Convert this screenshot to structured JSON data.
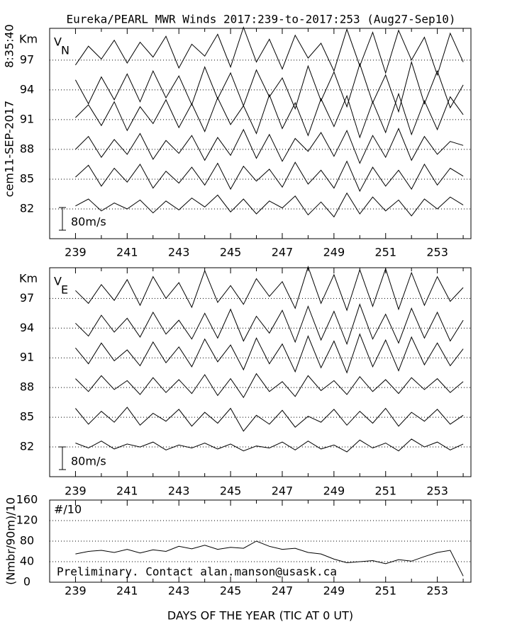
{
  "header": {
    "title": "Eureka/PEARL MWR Winds 2017:239-to-2017:253 (Aug27-Sep10)",
    "side_time": "8:35:40",
    "side_date": "cem11-SEP-2017",
    "x_label": "DAYS OF THE YEAR (TIC AT 0 UT)"
  },
  "chart_data": [
    {
      "type": "line",
      "panel_label": "V",
      "panel_subscript": "N",
      "unit_label": "Km",
      "scale_label": "80m/s",
      "grid": true,
      "xlim": [
        238,
        254.3
      ],
      "ylim": [
        79,
        100.2
      ],
      "xticks": [
        239,
        241,
        243,
        245,
        247,
        249,
        251,
        253
      ],
      "xminorticks": [
        240,
        242,
        244,
        246,
        248,
        250,
        252,
        254
      ],
      "yticks": [
        82,
        85,
        88,
        91,
        94,
        97
      ],
      "x": [
        239,
        239.5,
        240,
        240.5,
        241,
        241.5,
        242,
        242.5,
        243,
        243.5,
        244,
        244.5,
        245,
        245.5,
        246,
        246.5,
        247,
        247.5,
        248,
        248.5,
        249,
        249.5,
        250,
        250.5,
        251,
        251.5,
        252,
        252.5,
        253,
        253.5,
        254
      ],
      "series": [
        {
          "color": "#000000",
          "values": [
            96.5,
            98.4,
            97.1,
            99.0,
            96.7,
            98.8,
            97.3,
            99.4,
            96.2,
            98.6,
            97.4,
            99.6,
            96.3,
            100.3,
            96.8,
            99.1,
            96.1,
            99.5,
            97.2,
            98.7,
            95.9,
            100.1,
            96.4,
            99.8,
            95.7,
            100.0,
            97.0,
            99.3,
            95.5,
            99.7,
            96.8
          ]
        },
        {
          "color": "#000000",
          "values": [
            95.0,
            92.6,
            95.3,
            93.0,
            95.6,
            92.8,
            95.9,
            93.2,
            95.4,
            92.5,
            96.3,
            93.1,
            95.7,
            92.4,
            96.0,
            93.3,
            95.2,
            92.1,
            96.4,
            92.9,
            95.8,
            92.3,
            96.6,
            92.7,
            95.5,
            91.8,
            96.8,
            92.6,
            95.9,
            92.2,
            94.5
          ]
        },
        {
          "color": "#000000",
          "values": [
            91.2,
            92.5,
            90.4,
            92.8,
            89.9,
            92.3,
            90.6,
            93.0,
            90.2,
            92.6,
            89.8,
            93.2,
            90.5,
            92.4,
            89.6,
            93.5,
            90.1,
            92.7,
            89.4,
            93.1,
            90.3,
            93.4,
            89.2,
            92.8,
            89.7,
            93.6,
            89.5,
            92.9,
            90.0,
            93.3,
            91.5
          ]
        },
        {
          "color": "#000000",
          "values": [
            88.0,
            89.3,
            87.2,
            89.0,
            87.5,
            89.6,
            87.0,
            88.9,
            87.6,
            89.4,
            86.9,
            89.2,
            87.4,
            90.0,
            87.1,
            89.5,
            86.8,
            89.1,
            87.8,
            89.7,
            87.3,
            89.9,
            86.6,
            89.4,
            87.2,
            90.1,
            86.9,
            89.3,
            87.5,
            88.8,
            88.4
          ]
        },
        {
          "color": "#000000",
          "values": [
            85.2,
            86.4,
            84.3,
            86.1,
            84.7,
            86.5,
            84.1,
            85.8,
            84.6,
            86.2,
            84.4,
            86.6,
            84.0,
            86.3,
            84.8,
            86.0,
            84.2,
            86.7,
            84.5,
            85.9,
            84.1,
            86.8,
            83.8,
            86.2,
            84.3,
            85.9,
            84.0,
            86.5,
            84.4,
            86.1,
            85.3
          ]
        },
        {
          "color": "#000000",
          "values": [
            82.3,
            83.0,
            81.8,
            82.6,
            82.0,
            82.9,
            81.6,
            82.8,
            81.9,
            83.1,
            82.2,
            83.4,
            81.7,
            83.0,
            81.5,
            82.8,
            82.1,
            83.3,
            81.4,
            82.7,
            81.2,
            83.6,
            81.5,
            83.2,
            81.8,
            82.9,
            81.3,
            83.0,
            82.0,
            83.2,
            82.4
          ]
        }
      ]
    },
    {
      "type": "line",
      "panel_label": "V",
      "panel_subscript": "E",
      "unit_label": "Km",
      "scale_label": "80m/s",
      "grid": true,
      "xlim": [
        238,
        254.3
      ],
      "ylim": [
        79,
        100.1
      ],
      "xticks": [
        239,
        241,
        243,
        245,
        247,
        249,
        251,
        253
      ],
      "xminorticks": [
        240,
        242,
        244,
        246,
        248,
        250,
        252,
        254
      ],
      "yticks": [
        82,
        85,
        88,
        91,
        94,
        97
      ],
      "x": [
        239,
        239.5,
        240,
        240.5,
        241,
        241.5,
        242,
        242.5,
        243,
        243.5,
        244,
        244.5,
        245,
        245.5,
        246,
        246.5,
        247,
        247.5,
        248,
        248.5,
        249,
        249.5,
        250,
        250.5,
        251,
        251.5,
        252,
        252.5,
        253,
        253.5,
        254
      ],
      "series": [
        {
          "color": "#000000",
          "values": [
            97.8,
            96.5,
            98.4,
            96.8,
            98.9,
            96.3,
            99.2,
            97.0,
            98.6,
            96.1,
            99.8,
            96.6,
            98.3,
            96.4,
            99.0,
            97.2,
            98.7,
            96.0,
            100.2,
            96.5,
            99.4,
            95.8,
            99.9,
            96.2,
            100.0,
            95.9,
            99.6,
            96.3,
            99.2,
            96.7,
            98.1
          ]
        },
        {
          "color": "#000000",
          "values": [
            94.5,
            93.2,
            95.3,
            93.6,
            95.0,
            93.1,
            95.6,
            93.4,
            94.8,
            92.9,
            95.5,
            93.0,
            95.9,
            92.7,
            95.2,
            93.5,
            95.8,
            92.6,
            96.2,
            92.8,
            95.7,
            92.4,
            96.4,
            92.9,
            95.4,
            92.5,
            96.0,
            93.0,
            95.6,
            92.7,
            94.8
          ]
        },
        {
          "color": "#000000",
          "values": [
            92.0,
            90.4,
            92.5,
            90.7,
            91.8,
            90.2,
            92.6,
            90.5,
            92.1,
            90.1,
            92.9,
            90.6,
            92.3,
            89.8,
            93.0,
            90.4,
            92.4,
            89.6,
            93.2,
            90.0,
            92.7,
            89.5,
            93.4,
            90.1,
            92.8,
            89.7,
            93.1,
            90.3,
            92.5,
            90.2,
            91.9
          ]
        },
        {
          "color": "#000000",
          "values": [
            88.9,
            87.6,
            89.2,
            87.8,
            88.7,
            87.3,
            89.0,
            87.5,
            88.8,
            87.4,
            89.3,
            87.2,
            88.9,
            87.0,
            89.4,
            87.6,
            88.6,
            87.1,
            89.2,
            87.7,
            88.7,
            87.3,
            89.1,
            87.6,
            88.8,
            87.4,
            89.0,
            87.8,
            88.9,
            87.5,
            88.6
          ]
        },
        {
          "color": "#000000",
          "values": [
            85.9,
            84.3,
            85.6,
            84.5,
            86.0,
            84.2,
            85.4,
            84.6,
            85.8,
            84.1,
            85.5,
            84.4,
            85.9,
            83.6,
            85.2,
            84.3,
            85.7,
            84.0,
            85.1,
            84.5,
            85.8,
            84.2,
            85.6,
            84.4,
            85.9,
            84.1,
            85.5,
            84.6,
            85.8,
            84.3,
            85.2
          ]
        },
        {
          "color": "#000000",
          "values": [
            82.4,
            81.9,
            82.6,
            81.8,
            82.3,
            82.0,
            82.5,
            81.7,
            82.2,
            81.9,
            82.4,
            81.8,
            82.3,
            81.6,
            82.1,
            81.9,
            82.5,
            81.7,
            82.6,
            81.8,
            82.2,
            81.5,
            82.7,
            81.9,
            82.4,
            81.6,
            82.8,
            82.0,
            82.5,
            81.7,
            82.3
          ]
        }
      ]
    },
    {
      "type": "line",
      "panel_label": "#/10",
      "y_label": "(Nmbr/90m)/10",
      "annotation": "Preliminary. Contact alan.manson@usask.ca",
      "grid": true,
      "xlim": [
        238,
        254.3
      ],
      "ylim": [
        0,
        160
      ],
      "xticks": [
        239,
        241,
        243,
        245,
        247,
        249,
        251,
        253
      ],
      "xminorticks": [
        240,
        242,
        244,
        246,
        248,
        250,
        252,
        254
      ],
      "yticks": [
        0,
        40,
        80,
        120,
        160
      ],
      "x": [
        239,
        239.5,
        240,
        240.5,
        241,
        241.5,
        242,
        242.5,
        243,
        243.5,
        244,
        244.5,
        245,
        245.5,
        246,
        246.5,
        247,
        247.5,
        248,
        248.5,
        249,
        249.5,
        250,
        250.5,
        251,
        251.5,
        252,
        252.5,
        253,
        253.5,
        254
      ],
      "series": [
        {
          "color": "#000000",
          "values": [
            55,
            60,
            62,
            58,
            64,
            57,
            63,
            60,
            70,
            65,
            72,
            64,
            68,
            66,
            80,
            70,
            64,
            66,
            58,
            55,
            45,
            38,
            40,
            42,
            36,
            44,
            41,
            50,
            58,
            62,
            12
          ]
        }
      ]
    }
  ]
}
